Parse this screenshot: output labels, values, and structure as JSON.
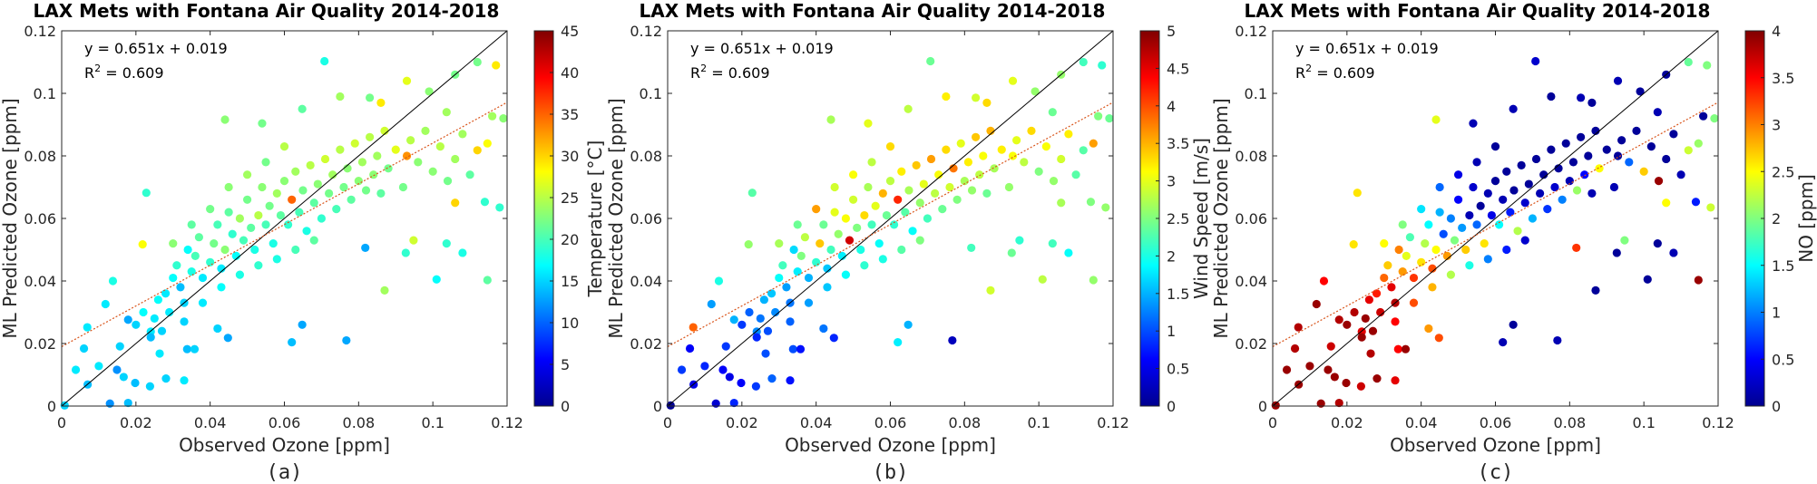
{
  "chart_data": {
    "type": "scatter",
    "shared": {
      "title": "LAX Mets with Fontana Air Quality 2014-2018",
      "xlabel": "Observed Ozone [ppm]",
      "ylabel": "ML Predicted Ozone [ppm]",
      "xlim": [
        0,
        0.12
      ],
      "ylim": [
        0,
        0.12
      ],
      "xticks": [
        "0",
        "0.02",
        "0.04",
        "0.06",
        "0.08",
        "0.1",
        "0.12"
      ],
      "yticks": [
        "0",
        "0.02",
        "0.04",
        "0.06",
        "0.08",
        "0.1",
        "0.12"
      ],
      "equation": "y = 0.651x + 0.019",
      "r2_label": "R",
      "r2_sup": "2",
      "r2_value": " = 0.609",
      "fit": {
        "slope": 0.651,
        "intercept": 0.019,
        "color": "#d9541a",
        "style": "dotted"
      },
      "identity_line": {
        "color": "#000000"
      },
      "colormap": "jet",
      "grid": false
    },
    "points_fields": [
      "observed",
      "predicted",
      "temperature",
      "wind_speed",
      "no"
    ],
    "points": [
      [
        0.0708,
        0.1103,
        18,
        2.4,
        0.3
      ],
      [
        0.112,
        0.11,
        22,
        2.2,
        1.9
      ],
      [
        0.117,
        0.109,
        29,
        2.1,
        2.0
      ],
      [
        0.106,
        0.106,
        22,
        2.6,
        0.1
      ],
      [
        0.093,
        0.104,
        27,
        3.0,
        0.2
      ],
      [
        0.099,
        0.1006,
        23,
        2.6,
        0.1
      ],
      [
        0.075,
        0.099,
        24,
        3.2,
        0.1
      ],
      [
        0.083,
        0.0986,
        22,
        2.9,
        0.2
      ],
      [
        0.086,
        0.097,
        29,
        3.3,
        0.1
      ],
      [
        0.0648,
        0.095,
        21,
        2.8,
        0.2
      ],
      [
        0.119,
        0.092,
        23,
        2.4,
        2.0
      ],
      [
        0.116,
        0.0927,
        24,
        2.5,
        0.1
      ],
      [
        0.044,
        0.0916,
        23,
        2.7,
        2.4
      ],
      [
        0.054,
        0.0904,
        22,
        3.0,
        0.2
      ],
      [
        0.1037,
        0.094,
        24,
        2.4,
        0.2
      ],
      [
        0.112,
        0.0818,
        30,
        2.3,
        2.3
      ],
      [
        0.1147,
        0.084,
        28,
        3.6,
        2.1
      ],
      [
        0.093,
        0.08,
        33,
        3.1,
        0.1
      ],
      [
        0.114,
        0.0653,
        19,
        2.5,
        0.6
      ],
      [
        0.118,
        0.0635,
        19,
        2.6,
        2.3
      ],
      [
        0.106,
        0.065,
        30,
        2.7,
        2.5
      ],
      [
        0.1037,
        0.052,
        19,
        2.2,
        0.1
      ],
      [
        0.108,
        0.049,
        18,
        1.9,
        0.2
      ],
      [
        0.101,
        0.0405,
        17,
        2.8,
        0.1
      ],
      [
        0.1147,
        0.0403,
        21,
        2.6,
        3.9
      ],
      [
        0.087,
        0.037,
        24,
        2.9,
        0.1
      ],
      [
        0.0767,
        0.021,
        13,
        0.3,
        0.2
      ],
      [
        0.0648,
        0.026,
        13,
        1.5,
        0.1
      ],
      [
        0.062,
        0.0204,
        14,
        1.8,
        0.2
      ],
      [
        0.0818,
        0.0506,
        13,
        2.2,
        3.3
      ],
      [
        0.0927,
        0.049,
        19,
        2.4,
        0.1
      ],
      [
        0.0948,
        0.053,
        26,
        2.1,
        2.0
      ],
      [
        0.0228,
        0.0682,
        19,
        2.3,
        2.6
      ],
      [
        0.0138,
        0.04,
        18,
        2.0,
        3.5
      ],
      [
        0.0118,
        0.0326,
        16,
        1.4,
        3.9
      ],
      [
        0.0069,
        0.0252,
        16,
        3.9,
        3.8
      ],
      [
        0.0218,
        0.0517,
        28,
        2.6,
        2.6
      ],
      [
        0.0008,
        0.0002,
        15,
        0.1,
        3.9
      ],
      [
        0.0038,
        0.0116,
        16,
        0.9,
        3.9
      ],
      [
        0.006,
        0.0184,
        15,
        0.6,
        3.8
      ],
      [
        0.01,
        0.0128,
        16,
        0.8,
        3.9
      ],
      [
        0.007,
        0.0069,
        14,
        0.5,
        3.9
      ],
      [
        0.013,
        0.0008,
        12,
        0.4,
        3.9
      ],
      [
        0.0179,
        0.001,
        14,
        0.8,
        3.8
      ],
      [
        0.0238,
        0.0063,
        15,
        0.9,
        3.7
      ],
      [
        0.033,
        0.0082,
        16,
        0.7,
        3.6
      ],
      [
        0.0281,
        0.0088,
        15,
        1.1,
        3.9
      ],
      [
        0.0198,
        0.0074,
        14,
        0.6,
        3.9
      ],
      [
        0.0448,
        0.0218,
        13,
        0.8,
        3.2
      ],
      [
        0.042,
        0.0248,
        15,
        1.2,
        2.9
      ],
      [
        0.0338,
        0.0182,
        14,
        1.0,
        3.5
      ],
      [
        0.0358,
        0.0182,
        15,
        0.7,
        3.9
      ],
      [
        0.0264,
        0.0168,
        16,
        1.0,
        3.8
      ],
      [
        0.0167,
        0.0093,
        15,
        0.5,
        3.9
      ],
      [
        0.0149,
        0.0116,
        12,
        0.6,
        3.9
      ],
      [
        0.0157,
        0.0191,
        15,
        0.9,
        3.7
      ],
      [
        0.0179,
        0.0276,
        13,
        1.5,
        3.8
      ],
      [
        0.024,
        0.0238,
        16,
        1.3,
        3.6
      ],
      [
        0.028,
        0.036,
        16,
        1.6,
        3.4
      ],
      [
        0.03,
        0.041,
        17,
        1.9,
        3.1
      ],
      [
        0.032,
        0.038,
        14,
        1.4,
        3.6
      ],
      [
        0.031,
        0.045,
        19,
        2.2,
        2.7
      ],
      [
        0.033,
        0.033,
        15,
        1.2,
        3.8
      ],
      [
        0.035,
        0.043,
        18,
        1.8,
        2.9
      ],
      [
        0.036,
        0.048,
        20,
        2.5,
        2.4
      ],
      [
        0.034,
        0.05,
        17,
        1.7,
        3.0
      ],
      [
        0.038,
        0.041,
        16,
        1.5,
        3.3
      ],
      [
        0.037,
        0.054,
        21,
        2.8,
        1.8
      ],
      [
        0.04,
        0.046,
        19,
        2.1,
        2.6
      ],
      [
        0.041,
        0.052,
        22,
        3.4,
        2.2
      ],
      [
        0.042,
        0.058,
        20,
        2.4,
        1.5
      ],
      [
        0.043,
        0.044,
        16,
        1.6,
        3.2
      ],
      [
        0.044,
        0.05,
        23,
        2.2,
        2.5
      ],
      [
        0.045,
        0.062,
        21,
        3.0,
        1.2
      ],
      [
        0.046,
        0.055,
        19,
        2.6,
        0.8
      ],
      [
        0.047,
        0.048,
        17,
        1.8,
        2.9
      ],
      [
        0.048,
        0.06,
        24,
        3.1,
        1.0
      ],
      [
        0.049,
        0.053,
        20,
        4.6,
        2.0
      ],
      [
        0.05,
        0.066,
        22,
        2.9,
        0.5
      ],
      [
        0.051,
        0.057,
        21,
        2.5,
        1.1
      ],
      [
        0.052,
        0.05,
        18,
        2.0,
        2.7
      ],
      [
        0.053,
        0.061,
        25,
        3.3,
        0.2
      ],
      [
        0.054,
        0.07,
        23,
        2.7,
        0.3
      ],
      [
        0.055,
        0.058,
        20,
        2.2,
        0.9
      ],
      [
        0.056,
        0.064,
        22,
        3.0,
        0.1
      ],
      [
        0.057,
        0.052,
        18,
        1.9,
        2.6
      ],
      [
        0.058,
        0.068,
        24,
        3.5,
        0.2
      ],
      [
        0.059,
        0.061,
        21,
        2.4,
        0.4
      ],
      [
        0.06,
        0.072,
        23,
        2.8,
        0.1
      ],
      [
        0.061,
        0.058,
        19,
        2.1,
        1.5
      ],
      [
        0.062,
        0.066,
        35,
        4.2,
        0.2
      ],
      [
        0.063,
        0.075,
        24,
        3.2,
        0.1
      ],
      [
        0.064,
        0.062,
        20,
        2.3,
        0.6
      ],
      [
        0.065,
        0.069,
        22,
        2.7,
        0.1
      ],
      [
        0.066,
        0.056,
        18,
        1.9,
        2.2
      ],
      [
        0.067,
        0.077,
        25,
        3.4,
        0.1
      ],
      [
        0.068,
        0.065,
        21,
        2.6,
        0.3
      ],
      [
        0.069,
        0.071,
        23,
        3.0,
        0.1
      ],
      [
        0.07,
        0.06,
        19,
        2.2,
        1.2
      ],
      [
        0.071,
        0.079,
        26,
        3.6,
        0.1
      ],
      [
        0.072,
        0.068,
        22,
        2.8,
        0.2
      ],
      [
        0.073,
        0.074,
        24,
        3.1,
        0.1
      ],
      [
        0.074,
        0.063,
        20,
        2.4,
        0.7
      ],
      [
        0.075,
        0.082,
        25,
        3.3,
        0.1
      ],
      [
        0.076,
        0.07,
        22,
        2.9,
        0.3
      ],
      [
        0.077,
        0.076,
        23,
        3.8,
        0.1
      ],
      [
        0.078,
        0.066,
        21,
        2.5,
        1.0
      ],
      [
        0.079,
        0.084,
        26,
        3.0,
        0.1
      ],
      [
        0.08,
        0.072,
        23,
        2.7,
        0.2
      ],
      [
        0.081,
        0.078,
        24,
        3.2,
        0.1
      ],
      [
        0.082,
        0.069,
        22,
        2.6,
        2.1
      ],
      [
        0.083,
        0.086,
        25,
        3.4,
        0.1
      ],
      [
        0.084,
        0.074,
        23,
        2.8,
        0.5
      ],
      [
        0.085,
        0.08,
        24,
        3.1,
        0.1
      ],
      [
        0.086,
        0.068,
        21,
        2.4,
        0.2
      ],
      [
        0.087,
        0.088,
        26,
        3.5,
        0.1
      ],
      [
        0.088,
        0.076,
        22,
        2.7,
        2.5
      ],
      [
        0.09,
        0.082,
        27,
        3.2,
        0.1
      ],
      [
        0.092,
        0.07,
        22,
        2.6,
        0.2
      ],
      [
        0.094,
        0.085,
        25,
        3.0,
        0.1
      ],
      [
        0.096,
        0.078,
        23,
        2.8,
        0.9
      ],
      [
        0.098,
        0.088,
        24,
        3.3,
        0.1
      ],
      [
        0.1,
        0.075,
        23,
        2.5,
        2.7
      ],
      [
        0.102,
        0.083,
        25,
        3.1,
        0.1
      ],
      [
        0.104,
        0.072,
        22,
        2.6,
        3.9
      ],
      [
        0.106,
        0.079,
        24,
        2.9,
        0.1
      ],
      [
        0.108,
        0.087,
        24,
        3.2,
        0.1
      ],
      [
        0.11,
        0.074,
        21,
        2.3,
        0.2
      ],
      [
        0.025,
        0.028,
        16,
        1.2,
        3.9
      ],
      [
        0.026,
        0.034,
        17,
        1.5,
        3.6
      ],
      [
        0.027,
        0.024,
        15,
        1.0,
        3.9
      ],
      [
        0.029,
        0.03,
        16,
        1.3,
        3.7
      ],
      [
        0.022,
        0.03,
        17,
        1.1,
        3.8
      ],
      [
        0.024,
        0.022,
        14,
        0.8,
        3.9
      ],
      [
        0.02,
        0.026,
        15,
        0.9,
        3.9
      ],
      [
        0.03,
        0.052,
        23,
        2.7,
        2.5
      ],
      [
        0.035,
        0.058,
        21,
        2.4,
        2.0
      ],
      [
        0.04,
        0.063,
        22,
        3.6,
        1.4
      ],
      [
        0.045,
        0.07,
        23,
        2.9,
        0.9
      ],
      [
        0.05,
        0.074,
        24,
        3.1,
        0.4
      ],
      [
        0.055,
        0.078,
        22,
        2.8,
        0.2
      ],
      [
        0.06,
        0.083,
        25,
        3.3,
        0.1
      ],
      [
        0.033,
        0.027,
        15,
        1.1,
        3.5
      ],
      [
        0.038,
        0.033,
        16,
        1.4,
        3.2
      ],
      [
        0.043,
        0.038,
        17,
        1.6,
        2.8
      ],
      [
        0.048,
        0.042,
        18,
        1.9,
        2.2
      ],
      [
        0.053,
        0.045,
        19,
        2.1,
        1.6
      ],
      [
        0.058,
        0.047,
        18,
        2.0,
        1.0
      ],
      [
        0.063,
        0.05,
        20,
        2.3,
        0.6
      ],
      [
        0.068,
        0.053,
        21,
        2.5,
        0.3
      ]
    ],
    "panels": [
      {
        "label": "(a)",
        "color_field": "temperature",
        "colorbar_label": "Temperature [°C]",
        "clim": [
          0,
          45
        ],
        "colorbar_ticks": [
          "0",
          "5",
          "10",
          "15",
          "20",
          "25",
          "30",
          "35",
          "40",
          "45"
        ]
      },
      {
        "label": "(b)",
        "color_field": "wind_speed",
        "colorbar_label": "Wind Speed [m/s]",
        "clim": [
          0,
          5
        ],
        "colorbar_ticks": [
          "0",
          "0.5",
          "1",
          "1.5",
          "2",
          "2.5",
          "3",
          "3.5",
          "4",
          "4.5",
          "5"
        ]
      },
      {
        "label": "(c)",
        "color_field": "no",
        "colorbar_label": "NO [ppm]",
        "clim": [
          0,
          4
        ],
        "colorbar_ticks": [
          "0",
          "0.5",
          "1",
          "1.5",
          "2",
          "2.5",
          "3",
          "3.5",
          "4"
        ]
      }
    ]
  }
}
